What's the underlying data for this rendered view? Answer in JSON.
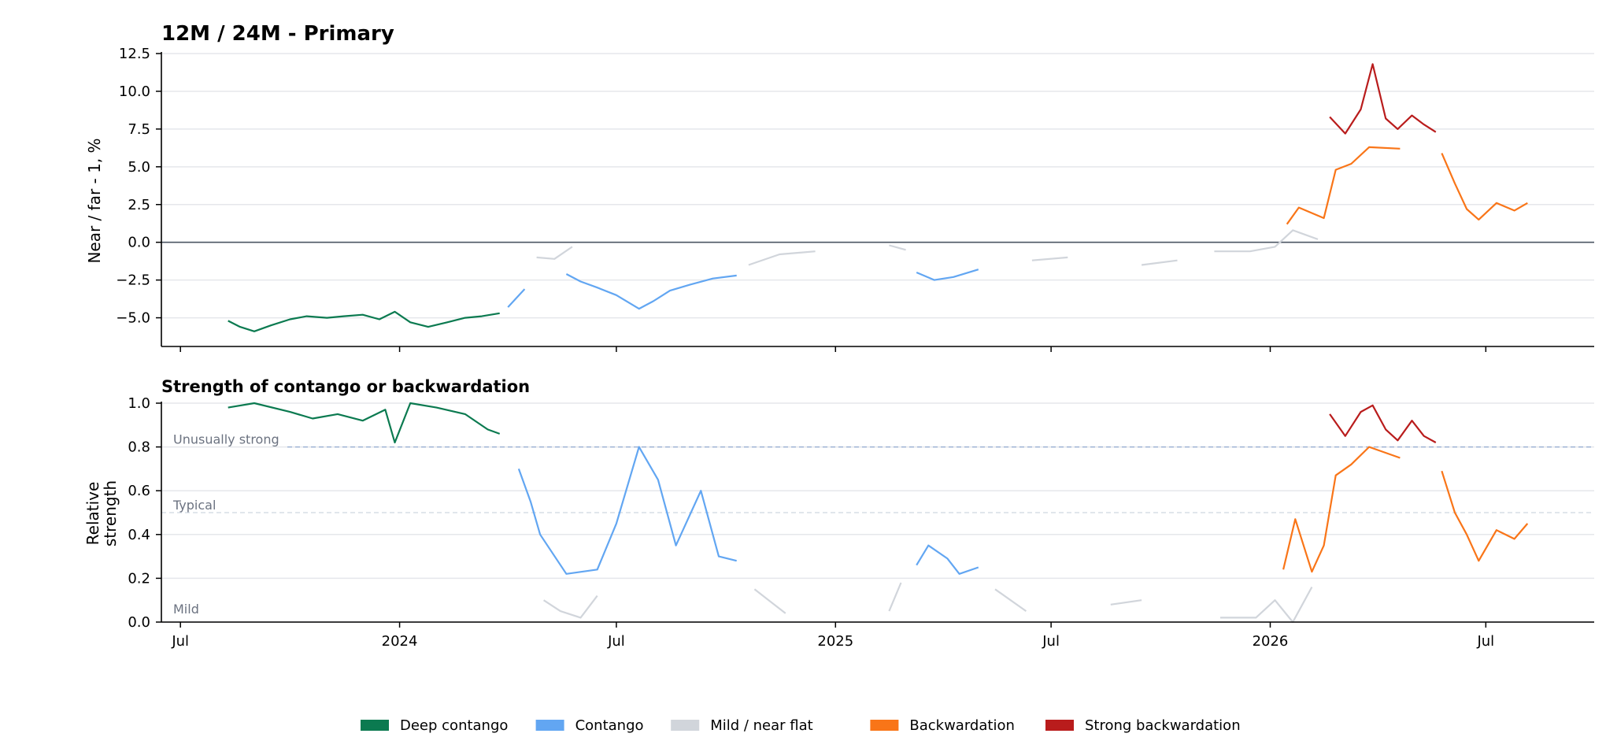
{
  "chart_data": [
    {
      "type": "line",
      "title": "12M / 24M - Primary",
      "xlabel": "",
      "ylabel": "Near / far - 1, %",
      "ylim": [
        -6.9,
        12.5
      ],
      "yticks": [
        -5.0,
        -2.5,
        0.0,
        2.5,
        5.0,
        7.5,
        10.0,
        12.5
      ],
      "ytick_labels": [
        "−5.0",
        "−2.5",
        "0.0",
        "2.5",
        "5.0",
        "7.5",
        "10.0",
        "12.5"
      ],
      "xlim": [
        "2023-06-15",
        "2026-09-30"
      ],
      "x_ticks": [
        {
          "date": "2023-07-01",
          "label": ""
        },
        {
          "date": "2024-01-01",
          "label": ""
        },
        {
          "date": "2024-07-01",
          "label": ""
        },
        {
          "date": "2025-01-01",
          "label": ""
        },
        {
          "date": "2025-07-01",
          "label": ""
        },
        {
          "date": "2026-01-01",
          "label": ""
        },
        {
          "date": "2026-07-01",
          "label": ""
        }
      ],
      "grid": "horizontal",
      "reference_line": 0,
      "series": [
        {
          "name": "Deep contango",
          "x": [
            "2023-08-10",
            "2023-08-20",
            "2023-09-01",
            "2023-09-15",
            "2023-10-01",
            "2023-10-15",
            "2023-11-01",
            "2023-11-15",
            "2023-12-01",
            "2023-12-15",
            "2023-12-28",
            "2024-01-10",
            "2024-01-25",
            "2024-02-10",
            "2024-02-25",
            "2024-03-10",
            "2024-03-25"
          ],
          "y": [
            -5.2,
            -5.6,
            -5.9,
            -5.5,
            -5.1,
            -4.9,
            -5.0,
            -4.9,
            -4.8,
            -5.1,
            -4.6,
            -5.3,
            -5.6,
            -5.3,
            -5.0,
            -4.9,
            -4.7
          ]
        },
        {
          "name": "Contango",
          "x": [
            "2024-04-01",
            "2024-04-15",
            "2024-05-20",
            "2024-06-01",
            "2024-06-15",
            "2024-07-01",
            "2024-07-20",
            "2024-08-01",
            "2024-08-15",
            "2024-09-01",
            "2024-09-20",
            "2024-10-10",
            "2025-03-10",
            "2025-03-25",
            "2025-04-10",
            "2025-05-01"
          ],
          "y": [
            -4.3,
            -3.1,
            -2.1,
            -2.6,
            -3.0,
            -3.5,
            -4.4,
            -3.9,
            -3.2,
            -2.8,
            -2.4,
            -2.2,
            -2.0,
            -2.5,
            -2.3,
            -1.8
          ]
        },
        {
          "name": "Mild / near flat",
          "x": [
            "2024-04-25",
            "2024-05-10",
            "2024-05-25",
            "2024-10-20",
            "2024-11-15",
            "2024-12-15",
            "2025-01-15",
            "2025-02-15",
            "2025-03-01",
            "2025-05-15",
            "2025-06-15",
            "2025-07-15",
            "2025-08-15",
            "2025-09-15",
            "2025-10-15",
            "2025-11-15",
            "2025-12-15",
            "2026-01-05",
            "2026-01-20",
            "2026-02-10"
          ],
          "y": [
            -1.0,
            -1.1,
            -0.3,
            -1.5,
            -0.8,
            -0.6,
            -0.3,
            -0.2,
            -0.5,
            -1.6,
            -1.2,
            -1.0,
            -1.6,
            -1.5,
            -1.2,
            -0.6,
            -0.6,
            -0.3,
            0.8,
            0.2
          ]
        },
        {
          "name": "Backwardation",
          "x": [
            "2026-01-15",
            "2026-01-25",
            "2026-02-15",
            "2026-02-25",
            "2026-03-10",
            "2026-03-25",
            "2026-04-20",
            "2026-05-25",
            "2026-06-05",
            "2026-06-15",
            "2026-06-25",
            "2026-07-10",
            "2026-07-25",
            "2026-08-05"
          ],
          "y": [
            1.2,
            2.3,
            1.6,
            4.8,
            5.2,
            6.3,
            6.2,
            5.9,
            3.9,
            2.2,
            1.5,
            2.6,
            2.1,
            2.6
          ]
        },
        {
          "name": "Strong backwardation",
          "x": [
            "2026-02-20",
            "2026-03-05",
            "2026-03-18",
            "2026-03-28",
            "2026-04-08",
            "2026-04-18",
            "2026-04-30",
            "2026-05-10",
            "2026-05-20"
          ],
          "y": [
            8.3,
            7.2,
            8.8,
            11.8,
            8.2,
            7.5,
            8.4,
            7.8,
            7.3
          ]
        }
      ]
    },
    {
      "type": "line",
      "title": "Strength of contango or backwardation",
      "xlabel": "",
      "ylabel": "Relative strength",
      "ylim": [
        0.0,
        1.0
      ],
      "yticks": [
        0.0,
        0.2,
        0.4,
        0.6,
        0.8,
        1.0
      ],
      "ytick_labels": [
        "0.0",
        "0.2",
        "0.4",
        "0.6",
        "0.8",
        "1.0"
      ],
      "xlim": [
        "2023-06-15",
        "2026-09-30"
      ],
      "x_ticks": [
        {
          "date": "2023-07-01",
          "label": "Jul"
        },
        {
          "date": "2024-01-01",
          "label": "2024"
        },
        {
          "date": "2024-07-01",
          "label": "Jul"
        },
        {
          "date": "2025-01-01",
          "label": "2025"
        },
        {
          "date": "2025-07-01",
          "label": "Jul"
        },
        {
          "date": "2026-01-01",
          "label": "2026"
        },
        {
          "date": "2026-07-01",
          "label": "Jul"
        }
      ],
      "grid": "horizontal",
      "annotations": [
        {
          "text": "Unusually strong",
          "y": 0.8
        },
        {
          "text": "Typical",
          "y": 0.5
        },
        {
          "text": "Mild",
          "y": 0.05
        }
      ],
      "series": [
        {
          "name": "Deep contango",
          "x": [
            "2023-08-10",
            "2023-09-01",
            "2023-10-01",
            "2023-10-20",
            "2023-11-10",
            "2023-12-01",
            "2023-12-20",
            "2023-12-28",
            "2024-01-10",
            "2024-02-01",
            "2024-02-25",
            "2024-03-15",
            "2024-03-25"
          ],
          "y": [
            0.98,
            1.0,
            0.96,
            0.93,
            0.95,
            0.92,
            0.97,
            0.82,
            1.0,
            0.98,
            0.95,
            0.88,
            0.86
          ]
        },
        {
          "name": "Contango",
          "x": [
            "2024-04-10",
            "2024-04-20",
            "2024-04-28",
            "2024-05-20",
            "2024-06-15",
            "2024-07-01",
            "2024-07-20",
            "2024-08-05",
            "2024-08-20",
            "2024-09-10",
            "2024-09-25",
            "2024-10-10",
            "2025-03-10",
            "2025-03-20",
            "2025-04-05",
            "2025-04-15",
            "2025-05-01"
          ],
          "y": [
            0.7,
            0.55,
            0.4,
            0.22,
            0.24,
            0.45,
            0.8,
            0.65,
            0.35,
            0.6,
            0.3,
            0.28,
            0.26,
            0.35,
            0.29,
            0.22,
            0.25
          ]
        },
        {
          "name": "Mild / near flat",
          "x": [
            "2024-05-01",
            "2024-05-15",
            "2024-06-01",
            "2024-06-15",
            "2024-10-25",
            "2024-11-20",
            "2025-01-15",
            "2025-02-15",
            "2025-02-25",
            "2025-05-15",
            "2025-06-10",
            "2025-07-20",
            "2025-08-20",
            "2025-09-15",
            "2025-10-20",
            "2025-11-20",
            "2025-12-20",
            "2026-01-05",
            "2026-01-20",
            "2026-02-05"
          ],
          "y": [
            0.1,
            0.05,
            0.02,
            0.12,
            0.15,
            0.04,
            0.02,
            0.05,
            0.18,
            0.15,
            0.05,
            0.18,
            0.08,
            0.1,
            0.02,
            0.02,
            0.02,
            0.1,
            0.0,
            0.16
          ]
        },
        {
          "name": "Backwardation",
          "x": [
            "2026-01-12",
            "2026-01-22",
            "2026-02-05",
            "2026-02-15",
            "2026-02-25",
            "2026-03-10",
            "2026-03-25",
            "2026-04-20",
            "2026-05-25",
            "2026-06-05",
            "2026-06-15",
            "2026-06-25",
            "2026-07-10",
            "2026-07-25",
            "2026-08-05"
          ],
          "y": [
            0.24,
            0.47,
            0.23,
            0.35,
            0.67,
            0.72,
            0.8,
            0.75,
            0.69,
            0.5,
            0.4,
            0.28,
            0.42,
            0.38,
            0.45
          ]
        },
        {
          "name": "Strong backwardation",
          "x": [
            "2026-02-20",
            "2026-03-05",
            "2026-03-18",
            "2026-03-28",
            "2026-04-08",
            "2026-04-18",
            "2026-04-30",
            "2026-05-10",
            "2026-05-20"
          ],
          "y": [
            0.95,
            0.85,
            0.96,
            0.99,
            0.88,
            0.83,
            0.92,
            0.85,
            0.82
          ]
        }
      ]
    }
  ],
  "legend": {
    "placement": "bottom-center",
    "items": [
      {
        "label": "Deep contango",
        "color": "#0b7a50"
      },
      {
        "label": "Contango",
        "color": "#62a6f2"
      },
      {
        "label": "Mild / near flat",
        "color": "#d1d5db"
      },
      {
        "label": "Backwardation",
        "color": "#f97518"
      },
      {
        "label": "Strong backwardation",
        "color": "#b91c1c"
      }
    ]
  },
  "colors": {
    "Deep contango": "#0b7a50",
    "Contango": "#62a6f2",
    "Mild / near flat": "#d1d5db",
    "Backwardation": "#f97518",
    "Strong backwardation": "#b91c1c",
    "grid": "#e5e7eb",
    "zero_line": "#4b5563",
    "strong_line": "#9fb4d4",
    "typical_line": "#d7dde5",
    "annotation_text": "#6b7280"
  }
}
